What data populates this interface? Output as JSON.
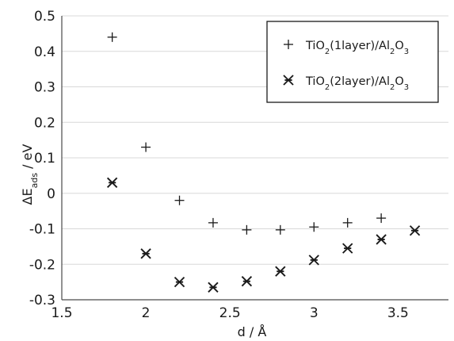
{
  "chart_data": {
    "type": "scatter",
    "xlabel": "d  /  Å",
    "ylabel": {
      "main": "ΔE",
      "sub": "ads",
      "rest": "  /  eV"
    },
    "xlim": [
      1.5,
      3.8
    ],
    "ylim": [
      -0.3,
      0.5
    ],
    "xticks": [
      "1.5",
      "2",
      "2.5",
      "3",
      "3.5"
    ],
    "xtick_values": [
      1.5,
      2,
      2.5,
      3,
      3.5
    ],
    "yticks": [
      "0.5",
      "0.4",
      "0.3",
      "0.2",
      "0.1",
      "0",
      "-0.1",
      "-0.2",
      "-0.3"
    ],
    "ytick_values": [
      0.5,
      0.4,
      0.3,
      0.2,
      0.1,
      0,
      -0.1,
      -0.2,
      -0.3
    ],
    "grid": "horizontal",
    "legend_position": "top-right",
    "series": [
      {
        "name": "TiO2(1layer)/Al2O3",
        "legend": [
          [
            "TiO",
            ""
          ],
          [
            "2",
            "sub"
          ],
          [
            "(1layer)/Al",
            ""
          ],
          [
            "2",
            "sub"
          ],
          [
            "O",
            ""
          ],
          [
            "3",
            "sub"
          ]
        ],
        "marker": "plus",
        "color": "#1a1a1a",
        "points": [
          [
            1.8,
            0.44
          ],
          [
            2.0,
            0.13
          ],
          [
            2.2,
            -0.02
          ],
          [
            2.4,
            -0.083
          ],
          [
            2.6,
            -0.103
          ],
          [
            2.8,
            -0.103
          ],
          [
            3.0,
            -0.095
          ],
          [
            3.2,
            -0.083
          ],
          [
            3.4,
            -0.07
          ]
        ]
      },
      {
        "name": "TiO2(2layer)/Al2O3",
        "legend": [
          [
            "TiO",
            ""
          ],
          [
            "2",
            "sub"
          ],
          [
            "(2layer)/Al",
            ""
          ],
          [
            "2",
            "sub"
          ],
          [
            "O",
            ""
          ],
          [
            "3",
            "sub"
          ]
        ],
        "marker": "asterisk",
        "color": "#1a1a1a",
        "points": [
          [
            1.8,
            0.03
          ],
          [
            2.0,
            -0.17
          ],
          [
            2.2,
            -0.25
          ],
          [
            2.4,
            -0.265
          ],
          [
            2.6,
            -0.248
          ],
          [
            2.8,
            -0.22
          ],
          [
            3.0,
            -0.188
          ],
          [
            3.2,
            -0.155
          ],
          [
            3.4,
            -0.13
          ],
          [
            3.6,
            -0.105
          ]
        ]
      }
    ]
  }
}
